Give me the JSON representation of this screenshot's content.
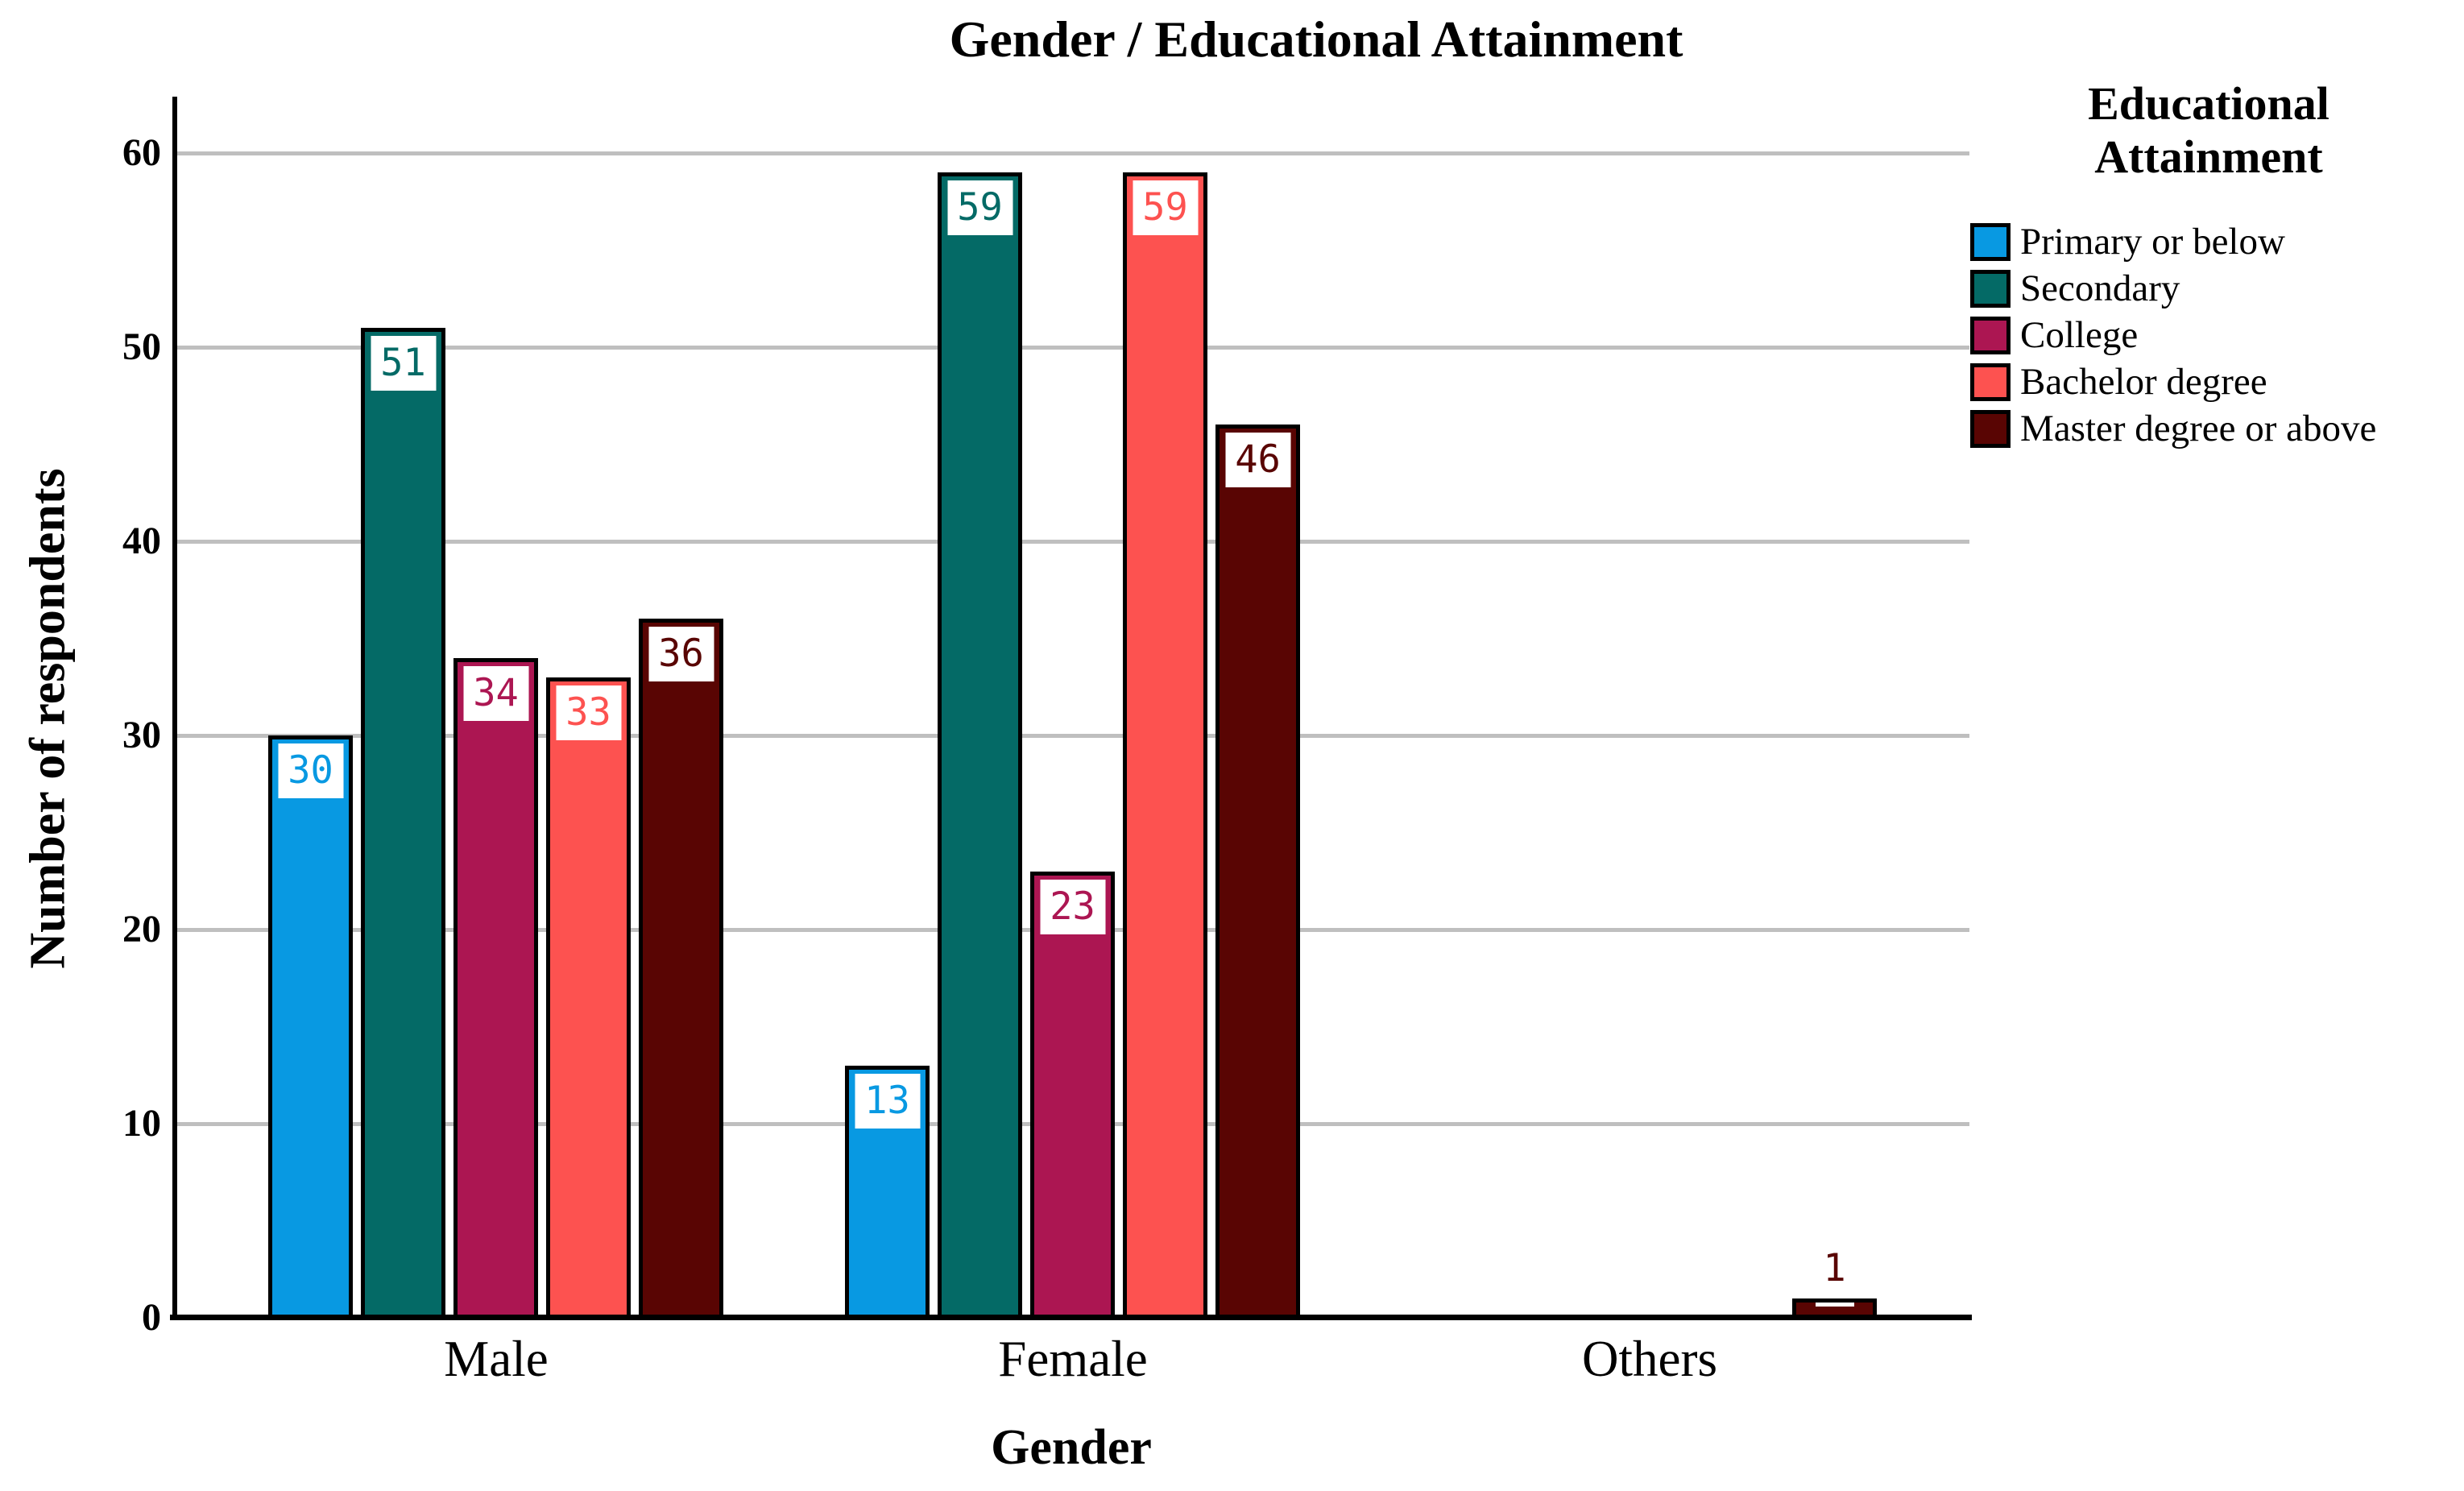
{
  "title": "Gender / Educational Attainment",
  "chart_data": {
    "type": "bar",
    "title": "Gender / Educational Attainment",
    "xlabel": "Gender",
    "ylabel": "Number of respondents",
    "categories": [
      "Male",
      "Female",
      "Others"
    ],
    "series": [
      {
        "name": "Primary or below",
        "color": "#0899E2",
        "values": [
          30,
          13,
          0
        ]
      },
      {
        "name": "Secondary",
        "color": "#046A66",
        "values": [
          51,
          59,
          0
        ]
      },
      {
        "name": "College",
        "color": "#AC1652",
        "values": [
          34,
          23,
          0
        ]
      },
      {
        "name": "Bachelor degree",
        "color": "#FD5250",
        "values": [
          33,
          59,
          0
        ]
      },
      {
        "name": "Master degree or above",
        "color": "#590503",
        "values": [
          36,
          46,
          1
        ]
      }
    ],
    "ylim": [
      0,
      60
    ],
    "yticks": [
      0,
      10,
      20,
      30,
      40,
      50,
      60
    ],
    "grid": true,
    "bar_value_labels": true,
    "legend_position": "right",
    "legend_title": "Educational Attainment"
  },
  "legend": {
    "title_line1": "Educational",
    "title_line2": "Attainment"
  },
  "colors": {
    "gridline": "#BFBFBF",
    "axis": "#000000",
    "background": "#FFFFFF",
    "label_box": "#FFFFFF"
  }
}
